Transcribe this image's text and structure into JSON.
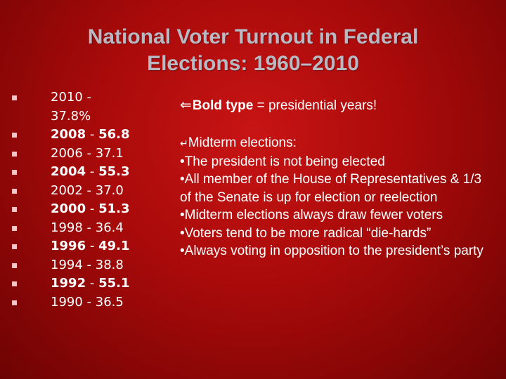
{
  "title": {
    "line1": "National Voter Turnout in Federal",
    "line2": "Elections: 1960–2010"
  },
  "turnout": [
    {
      "year": "2010",
      "value": "37.8%",
      "presidential": false
    },
    {
      "year": "2008",
      "value": "56.8",
      "presidential": true
    },
    {
      "year": "2006",
      "value": "37.1",
      "presidential": false
    },
    {
      "year": "2004",
      "value": "55.3",
      "presidential": true
    },
    {
      "year": "2002",
      "value": "37.0",
      "presidential": false
    },
    {
      "year": "2000",
      "value": "51.3",
      "presidential": true
    },
    {
      "year": "1998",
      "value": "36.4",
      "presidential": false
    },
    {
      "year": "1996",
      "value": "49.1",
      "presidential": true
    },
    {
      "year": "1994",
      "value": "38.8",
      "presidential": false
    },
    {
      "year": "1992",
      "value": "55.1",
      "presidential": true
    },
    {
      "year": "1990",
      "value": "36.5",
      "presidential": false
    }
  ],
  "separator": " - ",
  "note": {
    "arrow": "⇐",
    "bold": "Bold type",
    "rest": " = presidential years!"
  },
  "midterm": {
    "return_symbol": "↵",
    "heading": "Midterm elections:",
    "points": [
      "•The president is not being elected",
      "•All member of the House of Representatives & 1/3 of the Senate is up for election or reelection",
      "•Midterm elections always draw fewer voters",
      "•Voters tend to be more radical “die-hards”",
      "•Always voting in opposition to the president’s party"
    ]
  },
  "colors": {
    "background": "#b00c0c",
    "title": "#b9b9c4",
    "text": "#ffffff",
    "bullet": "#f4c8c8"
  }
}
